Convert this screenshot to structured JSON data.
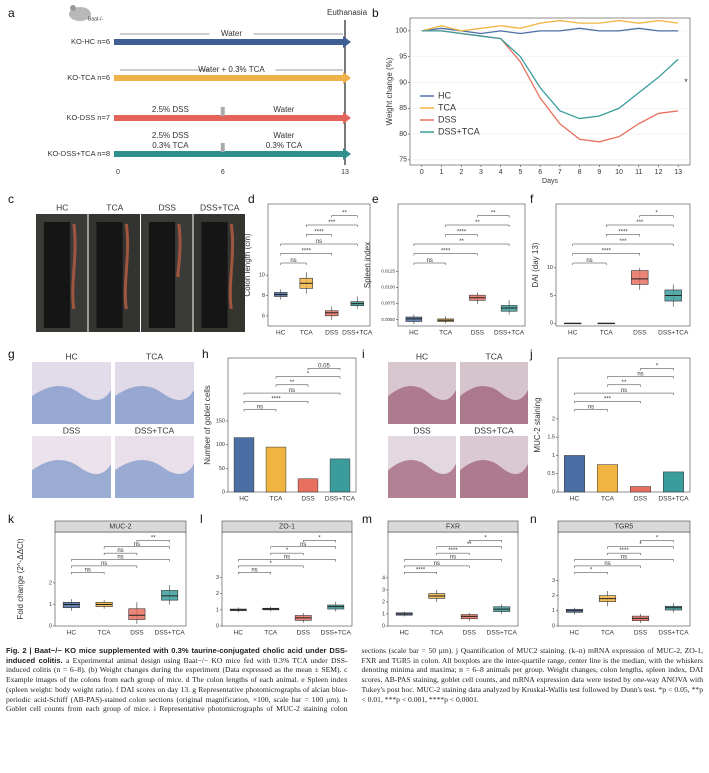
{
  "timeline": {
    "panel": "a",
    "mouse_label": "Baat-/-",
    "end_label": "Euthanasia",
    "ticks": [
      0,
      6,
      13
    ],
    "rows": [
      {
        "label": "KO-HC n=6",
        "color": "#3d5f93",
        "segments": [
          [
            "Water"
          ]
        ]
      },
      {
        "label": "KO-TCA n=6",
        "color": "#f0b04a",
        "segments": [
          [
            "Water + 0.3% TCA"
          ]
        ]
      },
      {
        "label": "KO-DSS n=7",
        "color": "#e4635a",
        "segments": [
          [
            "2.5% DSS"
          ],
          [
            "Water"
          ]
        ]
      },
      {
        "label": "KO-DSS+TCA n=8",
        "color": "#2f8f8c",
        "segments": [
          [
            "2.5% DSS",
            "0.3% TCA"
          ],
          [
            "Water",
            "0.3% TCA"
          ]
        ]
      }
    ]
  },
  "photos": [
    {
      "panel": "c",
      "labels": [
        "HC",
        "TCA",
        "DSS",
        "DSS+TCA"
      ]
    },
    {
      "panel": "g",
      "labels": [
        "HC",
        "TCA",
        "DSS",
        "DSS+TCA"
      ]
    },
    {
      "panel": "i",
      "labels": [
        "HC",
        "TCA",
        "DSS",
        "DSS+TCA"
      ]
    }
  ],
  "chart_data": [
    {
      "type": "line",
      "panel": "b",
      "ylabel": "Weight change (%)",
      "xlabel": "Days",
      "annotation": "*",
      "x": [
        0,
        1,
        2,
        3,
        4,
        5,
        6,
        7,
        8,
        9,
        10,
        11,
        12,
        13
      ],
      "xlim": [
        -0.6,
        13.6
      ],
      "xticks": [
        0,
        1,
        2,
        3,
        4,
        5,
        6,
        7,
        8,
        9,
        10,
        11,
        12,
        13
      ],
      "ylim": [
        74,
        102.5
      ],
      "yticks": [
        75,
        80,
        85,
        90,
        95,
        100
      ],
      "series": [
        {
          "name": "HC",
          "color": "#4b6fa5",
          "values": [
            100,
            100.5,
            100,
            99.5,
            100,
            99.5,
            100,
            100,
            100.5,
            100,
            100,
            100.5,
            100,
            100
          ]
        },
        {
          "name": "TCA",
          "color": "#f2b441",
          "values": [
            100,
            101,
            100,
            100.5,
            101,
            100.5,
            101.5,
            102,
            101.5,
            101.5,
            102,
            101.5,
            102,
            101.5
          ]
        },
        {
          "name": "DSS",
          "color": "#e8705f",
          "values": [
            100,
            100,
            99.5,
            99,
            98.5,
            94,
            87,
            82,
            79,
            78.5,
            79.5,
            82,
            84,
            84.5
          ]
        },
        {
          "name": "DSS+TCA",
          "color": "#3a9d9b",
          "values": [
            100,
            100,
            99.5,
            99,
            98.5,
            95,
            89,
            84.5,
            83,
            83.5,
            85,
            88,
            91,
            94.5
          ]
        }
      ]
    },
    {
      "type": "box",
      "panel": "d",
      "ylabel": "Colon length (cm)",
      "categories": [
        "HC",
        "TCA",
        "DSS",
        "DSS+TCA"
      ],
      "colors": [
        "#4b6fa5",
        "#f2b441",
        "#e8705f",
        "#3a9d9b"
      ],
      "ylim": [
        5,
        11
      ],
      "yticks": [
        6,
        8,
        10
      ],
      "boxes": [
        {
          "min": 7.6,
          "q1": 7.9,
          "median": 8.1,
          "q3": 8.3,
          "max": 8.6
        },
        {
          "min": 8.2,
          "q1": 8.7,
          "median": 9.2,
          "q3": 9.7,
          "max": 10.3
        },
        {
          "min": 5.6,
          "q1": 6.0,
          "median": 6.3,
          "q3": 6.5,
          "max": 6.9
        },
        {
          "min": 6.7,
          "q1": 7.0,
          "median": 7.2,
          "q3": 7.4,
          "max": 7.9
        }
      ],
      "comparisons": [
        {
          "between": [
            "HC",
            "TCA"
          ],
          "label": "ns"
        },
        {
          "between": [
            "HC",
            "DSS"
          ],
          "label": "****"
        },
        {
          "between": [
            "HC",
            "DSS+TCA"
          ],
          "label": "ns"
        },
        {
          "between": [
            "TCA",
            "DSS"
          ],
          "label": "****"
        },
        {
          "between": [
            "TCA",
            "DSS+TCA"
          ],
          "label": "***"
        },
        {
          "between": [
            "DSS",
            "DSS+TCA"
          ],
          "label": "**"
        }
      ]
    },
    {
      "type": "box",
      "panel": "e",
      "ylabel": "Spleen index",
      "categories": [
        "HC",
        "TCA",
        "DSS",
        "DSS+TCA"
      ],
      "colors": [
        "#4b6fa5",
        "#f2b441",
        "#e8705f",
        "#3a9d9b"
      ],
      "ylim": [
        0.004,
        0.0135
      ],
      "yticks": [
        {
          "value": 0.005,
          "label": "0.0050"
        },
        {
          "value": 0.0075,
          "label": "0.0075"
        },
        {
          "value": 0.01,
          "label": "0.0100"
        },
        {
          "value": 0.0125,
          "label": "0.0125"
        }
      ],
      "boxes": [
        {
          "min": 0.0043,
          "q1": 0.0047,
          "median": 0.0051,
          "q3": 0.0054,
          "max": 0.0058
        },
        {
          "min": 0.0044,
          "q1": 0.0047,
          "median": 0.0049,
          "q3": 0.0051,
          "max": 0.0055
        },
        {
          "min": 0.0074,
          "q1": 0.008,
          "median": 0.0084,
          "q3": 0.0088,
          "max": 0.0092
        },
        {
          "min": 0.0058,
          "q1": 0.0063,
          "median": 0.0068,
          "q3": 0.0072,
          "max": 0.008
        }
      ],
      "comparisons": [
        {
          "between": [
            "HC",
            "TCA"
          ],
          "label": "ns"
        },
        {
          "between": [
            "HC",
            "DSS"
          ],
          "label": "****"
        },
        {
          "between": [
            "HC",
            "DSS+TCA"
          ],
          "label": "**"
        },
        {
          "between": [
            "TCA",
            "DSS"
          ],
          "label": "****"
        },
        {
          "between": [
            "TCA",
            "DSS+TCA"
          ],
          "label": "**"
        },
        {
          "between": [
            "DSS",
            "DSS+TCA"
          ],
          "label": "**"
        }
      ]
    },
    {
      "type": "box",
      "panel": "f",
      "ylabel": "DAI (day 13)",
      "categories": [
        "HC",
        "TCA",
        "DSS",
        "DSS+TCA"
      ],
      "colors": [
        "#4b6fa5",
        "#f2b441",
        "#e8705f",
        "#3a9d9b"
      ],
      "ylim": [
        -0.5,
        10.5
      ],
      "yticks": [
        0,
        5,
        10
      ],
      "boxes": [
        {
          "min": 0,
          "q1": 0,
          "median": 0,
          "q3": 0,
          "max": 0
        },
        {
          "min": 0,
          "q1": 0,
          "median": 0,
          "q3": 0,
          "max": 0
        },
        {
          "min": 6,
          "q1": 7,
          "median": 8,
          "q3": 9.5,
          "max": 10
        },
        {
          "min": 3,
          "q1": 4,
          "median": 5,
          "q3": 6,
          "max": 7
        }
      ],
      "comparisons": [
        {
          "between": [
            "HC",
            "TCA"
          ],
          "label": "ns"
        },
        {
          "between": [
            "HC",
            "DSS"
          ],
          "label": "****"
        },
        {
          "between": [
            "HC",
            "DSS+TCA"
          ],
          "label": "***"
        },
        {
          "between": [
            "TCA",
            "DSS"
          ],
          "label": "****"
        },
        {
          "between": [
            "TCA",
            "DSS+TCA"
          ],
          "label": "***"
        },
        {
          "between": [
            "DSS",
            "DSS+TCA"
          ],
          "label": "*"
        }
      ]
    },
    {
      "type": "bar",
      "panel": "h",
      "ylabel": "Number of goblet cells",
      "categories": [
        "HC",
        "TCA",
        "DSS",
        "DSS+TCA"
      ],
      "colors": [
        "#4b6fa5",
        "#f2b441",
        "#e8705f",
        "#3a9d9b"
      ],
      "ylim": [
        0,
        170
      ],
      "yticks": [
        0,
        50,
        100,
        150
      ],
      "values": [
        115,
        95,
        28,
        70
      ],
      "comparisons": [
        {
          "between": [
            "HC",
            "TCA"
          ],
          "label": "ns"
        },
        {
          "between": [
            "HC",
            "DSS"
          ],
          "label": "****"
        },
        {
          "between": [
            "HC",
            "DSS+TCA"
          ],
          "label": "ns"
        },
        {
          "between": [
            "TCA",
            "DSS"
          ],
          "label": "**"
        },
        {
          "between": [
            "TCA",
            "DSS+TCA"
          ],
          "label": "*"
        },
        {
          "between": [
            "DSS",
            "DSS+TCA"
          ],
          "label": "0.05"
        }
      ]
    },
    {
      "type": "bar",
      "panel": "j",
      "ylabel": "MUC-2 staining",
      "categories": [
        "HC",
        "TCA",
        "DSS",
        "DSS+TCA"
      ],
      "colors": [
        "#4b6fa5",
        "#f2b441",
        "#e8705f",
        "#3a9d9b"
      ],
      "ylim": [
        0,
        2.2
      ],
      "yticks": [
        0,
        0.5,
        1,
        1.5,
        2
      ],
      "values": [
        1.0,
        0.75,
        0.15,
        0.55
      ],
      "comparisons": [
        {
          "between": [
            "HC",
            "TCA"
          ],
          "label": "ns"
        },
        {
          "between": [
            "HC",
            "DSS"
          ],
          "label": "***"
        },
        {
          "between": [
            "HC",
            "DSS+TCA"
          ],
          "label": "ns"
        },
        {
          "between": [
            "TCA",
            "DSS"
          ],
          "label": "**"
        },
        {
          "between": [
            "TCA",
            "DSS+TCA"
          ],
          "label": "ns"
        },
        {
          "between": [
            "DSS",
            "DSS+TCA"
          ],
          "label": "*"
        }
      ]
    },
    {
      "type": "box",
      "panel": "k",
      "title": "MUC-2",
      "ylabel": "Fold change (2^-ΔΔCt)",
      "categories": [
        "HC",
        "TCA",
        "DSS",
        "DSS+TCA"
      ],
      "colors": [
        "#4b6fa5",
        "#f2b441",
        "#e8705f",
        "#3a9d9b"
      ],
      "ylim": [
        0,
        2.4
      ],
      "yticks": [
        0,
        1,
        2
      ],
      "boxes": [
        {
          "min": 0.7,
          "q1": 0.85,
          "median": 1.0,
          "q3": 1.1,
          "max": 1.25
        },
        {
          "min": 0.8,
          "q1": 0.9,
          "median": 1.0,
          "q3": 1.1,
          "max": 1.2
        },
        {
          "min": 0.1,
          "q1": 0.3,
          "median": 0.5,
          "q3": 0.8,
          "max": 1.1
        },
        {
          "min": 1.0,
          "q1": 1.2,
          "median": 1.4,
          "q3": 1.65,
          "max": 1.9
        }
      ],
      "comparisons": [
        {
          "between": [
            "HC",
            "TCA"
          ],
          "label": "ns"
        },
        {
          "between": [
            "HC",
            "DSS"
          ],
          "label": "ns"
        },
        {
          "between": [
            "HC",
            "DSS+TCA"
          ],
          "label": "ns"
        },
        {
          "between": [
            "TCA",
            "DSS"
          ],
          "label": "ns"
        },
        {
          "between": [
            "TCA",
            "DSS+TCA"
          ],
          "label": "ns"
        },
        {
          "between": [
            "DSS",
            "DSS+TCA"
          ],
          "label": "**"
        }
      ]
    },
    {
      "type": "box",
      "panel": "l",
      "title": "ZO-1",
      "categories": [
        "HC",
        "TCA",
        "DSS",
        "DSS+TCA"
      ],
      "colors": [
        "#4b6fa5",
        "#f2b441",
        "#e8705f",
        "#3a9d9b"
      ],
      "ylim": [
        0,
        3.2
      ],
      "yticks": [
        0,
        1,
        2,
        3
      ],
      "boxes": [
        {
          "min": 0.85,
          "q1": 0.95,
          "median": 1.0,
          "q3": 1.05,
          "max": 1.15
        },
        {
          "min": 0.9,
          "q1": 1.0,
          "median": 1.05,
          "q3": 1.1,
          "max": 1.2
        },
        {
          "min": 0.2,
          "q1": 0.35,
          "median": 0.5,
          "q3": 0.65,
          "max": 0.8
        },
        {
          "min": 0.9,
          "q1": 1.05,
          "median": 1.2,
          "q3": 1.3,
          "max": 1.5
        }
      ],
      "comparisons": [
        {
          "between": [
            "HC",
            "TCA"
          ],
          "label": "ns"
        },
        {
          "between": [
            "HC",
            "DSS"
          ],
          "label": "*"
        },
        {
          "between": [
            "HC",
            "DSS+TCA"
          ],
          "label": "ns"
        },
        {
          "between": [
            "TCA",
            "DSS"
          ],
          "label": "*"
        },
        {
          "between": [
            "TCA",
            "DSS+TCA"
          ],
          "label": "ns"
        },
        {
          "between": [
            "DSS",
            "DSS+TCA"
          ],
          "label": "*"
        }
      ]
    },
    {
      "type": "box",
      "panel": "m",
      "title": "FXR",
      "categories": [
        "HC",
        "TCA",
        "DSS",
        "DSS+TCA"
      ],
      "colors": [
        "#4b6fa5",
        "#f2b441",
        "#e8705f",
        "#3a9d9b"
      ],
      "ylim": [
        0,
        4.3
      ],
      "yticks": [
        0,
        1,
        2,
        3,
        4
      ],
      "boxes": [
        {
          "min": 0.8,
          "q1": 0.9,
          "median": 1.0,
          "q3": 1.1,
          "max": 1.2
        },
        {
          "min": 2.0,
          "q1": 2.3,
          "median": 2.5,
          "q3": 2.7,
          "max": 3.0
        },
        {
          "min": 0.4,
          "q1": 0.6,
          "median": 0.8,
          "q3": 0.95,
          "max": 1.1
        },
        {
          "min": 1.0,
          "q1": 1.2,
          "median": 1.4,
          "q3": 1.6,
          "max": 1.8
        }
      ],
      "comparisons": [
        {
          "between": [
            "HC",
            "TCA"
          ],
          "label": "****"
        },
        {
          "between": [
            "HC",
            "DSS"
          ],
          "label": "ns"
        },
        {
          "between": [
            "HC",
            "DSS+TCA"
          ],
          "label": "ns"
        },
        {
          "between": [
            "TCA",
            "DSS"
          ],
          "label": "****"
        },
        {
          "between": [
            "TCA",
            "DSS+TCA"
          ],
          "label": "**"
        },
        {
          "between": [
            "DSS",
            "DSS+TCA"
          ],
          "label": "*"
        }
      ]
    },
    {
      "type": "box",
      "panel": "n",
      "title": "TGR5",
      "categories": [
        "HC",
        "TCA",
        "DSS",
        "DSS+TCA"
      ],
      "colors": [
        "#4b6fa5",
        "#f2b441",
        "#e8705f",
        "#3a9d9b"
      ],
      "ylim": [
        0,
        3.4
      ],
      "yticks": [
        0,
        1,
        2,
        3
      ],
      "boxes": [
        {
          "min": 0.75,
          "q1": 0.9,
          "median": 1.0,
          "q3": 1.1,
          "max": 1.2
        },
        {
          "min": 1.3,
          "q1": 1.6,
          "median": 1.8,
          "q3": 2.0,
          "max": 2.3
        },
        {
          "min": 0.2,
          "q1": 0.35,
          "median": 0.5,
          "q3": 0.65,
          "max": 0.8
        },
        {
          "min": 0.9,
          "q1": 1.05,
          "median": 1.2,
          "q3": 1.3,
          "max": 1.5
        }
      ],
      "comparisons": [
        {
          "between": [
            "HC",
            "TCA"
          ],
          "label": "*"
        },
        {
          "between": [
            "HC",
            "DSS"
          ],
          "label": "ns"
        },
        {
          "between": [
            "HC",
            "DSS+TCA"
          ],
          "label": "ns"
        },
        {
          "between": [
            "TCA",
            "DSS"
          ],
          "label": "****"
        },
        {
          "between": [
            "TCA",
            "DSS+TCA"
          ],
          "label": "*"
        },
        {
          "between": [
            "DSS",
            "DSS+TCA"
          ],
          "label": "*"
        }
      ]
    }
  ],
  "caption": {
    "title": "Fig. 2 | Baat−/− KO mice supplemented with 0.3% taurine-conjugated cholic acid under DSS-induced colitis.",
    "body": "a Experimental animal design using Baat−/− KO mice fed with 0.3% TCA under DSS-induced colitis (n = 6–8). (b) Weight changes during the experiment (Data expressed as the mean ± SEM). c Example images of the colons from each group of mice. d The colon lengths of each animal. e Spleen index (spleen weight: body weight ratio). f DAI scores on day 13. g Representative photomicrographs of alcian blue-periodic acid-Schiff (AB-PAS)-stained colon sections (original magnification, ×100, scale bar = 100 μm). h Goblet cell counts from each group of mice. i Representative photomicrographs of MUC-2 staining colon sections (scale bar = 50 μm). j Quantification of MUC2 staining. (k–n) mRNA expression of MUC-2, ZO-1, FXR and TGR5 in colon. All boxplots are the inter-quartile range, center line is the median, with the whiskers denoting minima and maxima; n = 6–8 animals per group. Weight changes, colon lengths, spleen index, DAI scores, AB-PAS staining, goblet cell counts, and mRNA expression data were tested by one-way ANOVA with Tukey's post hoc. MUC-2 staining data analyzed by Kruskal-Wallis test followed by Dunn's test. *p < 0.05, **p < 0.01, ***p < 0.001, ****p < 0.0001."
  }
}
